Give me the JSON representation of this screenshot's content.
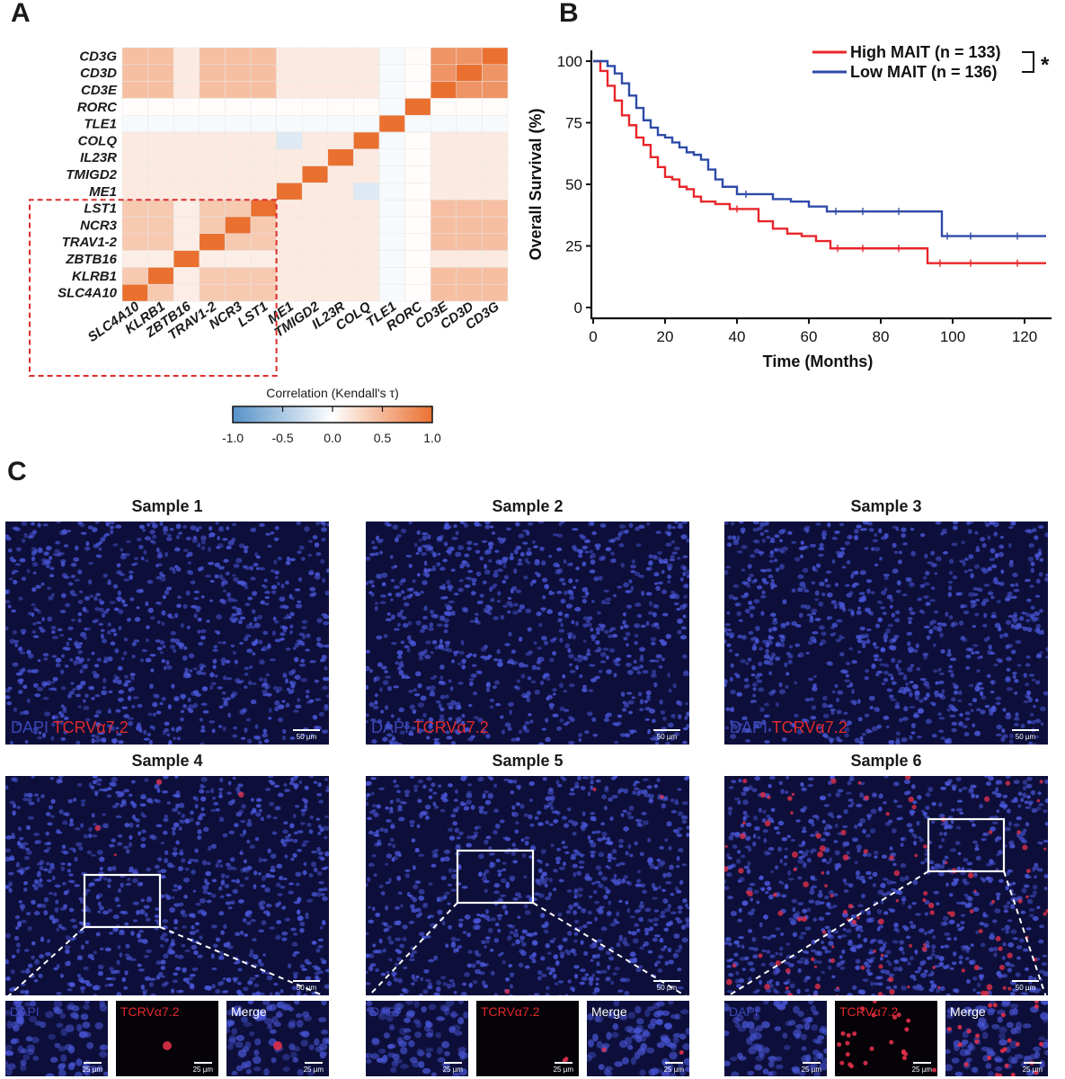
{
  "panels": {
    "a": "A",
    "b": "B",
    "c": "C"
  },
  "heatmap": {
    "rows": [
      "CD3G",
      "CD3D",
      "CD3E",
      "RORC",
      "TLE1",
      "COLQ",
      "IL23R",
      "TMIGD2",
      "ME1",
      "LST1",
      "NCR3",
      "TRAV1-2",
      "ZBTB16",
      "KLRB1",
      "SLC4A10"
    ],
    "cols": [
      "SLC4A10",
      "KLRB1",
      "ZBTB16",
      "TRAV1-2",
      "NCR3",
      "LST1",
      "ME1",
      "TMIGD2",
      "IL23R",
      "COLQ",
      "TLE1",
      "RORC",
      "CD3E",
      "CD3D",
      "CD3G"
    ],
    "legend_title": "Correlation (Kendall's τ)",
    "legend_ticks": [
      "-1.0",
      "-0.5",
      "0.0",
      "0.5",
      "1.0"
    ]
  },
  "chart_data": {
    "type": "line",
    "title": "",
    "xlabel": "Time (Months)",
    "ylabel": "Overall Survival (%)",
    "xlim": [
      0,
      125
    ],
    "ylim": [
      0,
      100
    ],
    "xticks": [
      "0",
      "20",
      "40",
      "60",
      "80",
      "100",
      "120"
    ],
    "yticks": [
      "0",
      "25",
      "50",
      "75",
      "100"
    ],
    "significance": "*",
    "series": [
      {
        "name": "High MAIT (n = 133)",
        "color": "#e8262a",
        "x": [
          0,
          2,
          4,
          6,
          8,
          10,
          12,
          14,
          16,
          18,
          20,
          22,
          24,
          26,
          28,
          30,
          34,
          38,
          42,
          46,
          50,
          54,
          58,
          62,
          66,
          70,
          80,
          90,
          93,
          100,
          110,
          126
        ],
        "y": [
          100,
          96,
          90,
          84,
          78,
          74,
          69,
          66,
          61,
          57,
          53,
          52,
          49,
          48,
          45,
          43,
          42,
          40,
          40,
          35,
          32,
          30,
          29,
          27,
          24,
          24,
          24,
          24,
          18,
          18,
          18,
          18
        ]
      },
      {
        "name": "Low MAIT (n = 136)",
        "color": "#2e4aa8",
        "x": [
          0,
          2,
          4,
          6,
          8,
          10,
          12,
          14,
          16,
          18,
          20,
          22,
          24,
          26,
          28,
          30,
          32,
          34,
          36,
          40,
          45,
          50,
          55,
          60,
          65,
          70,
          80,
          90,
          97,
          100,
          110,
          126
        ],
        "y": [
          100,
          100,
          98,
          95,
          91,
          86,
          81,
          76,
          73,
          70,
          69,
          67,
          65,
          63,
          62,
          60,
          56,
          52,
          49,
          46,
          46,
          44,
          43,
          41,
          39,
          39,
          39,
          39,
          29,
          29,
          29,
          29
        ]
      }
    ]
  },
  "panel_c": {
    "samples": [
      {
        "title": "Sample 1",
        "stain_dapi": "DAPI",
        "stain_tcr": "TCRVα7.2",
        "scale": "50 µm"
      },
      {
        "title": "Sample 2",
        "stain_dapi": "DAPI",
        "stain_tcr": "TCRVα7.2",
        "scale": "50 µm"
      },
      {
        "title": "Sample 3",
        "stain_dapi": "DAPI",
        "stain_tcr": "TCRVα7.2",
        "scale": "50 µm"
      },
      {
        "title": "Sample 4",
        "scale": "50 µm"
      },
      {
        "title": "Sample 5",
        "scale": "50 µm"
      },
      {
        "title": "Sample 6",
        "scale": "50 µm"
      }
    ],
    "thumb_labels": {
      "dapi": "DAPI",
      "tcr": "TCRVα7.2",
      "merge": "Merge",
      "scale": "25 µm"
    }
  }
}
